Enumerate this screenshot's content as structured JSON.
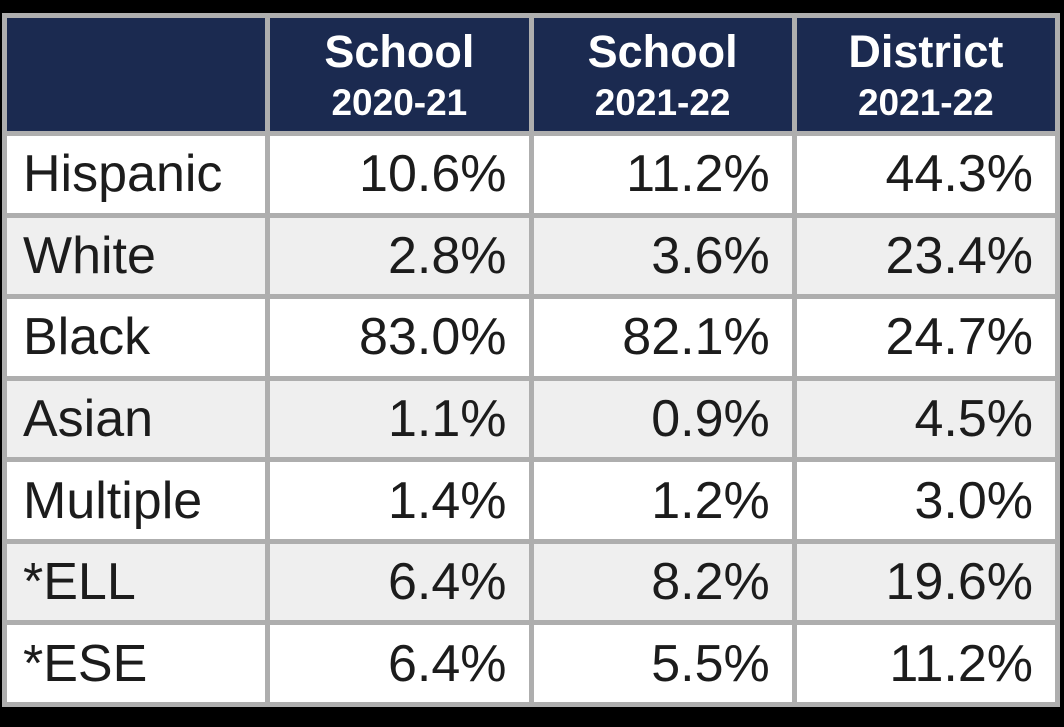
{
  "table": {
    "corner": "",
    "columns": [
      {
        "title": "School",
        "sub": "2020-21"
      },
      {
        "title": "School",
        "sub": "2021-22"
      },
      {
        "title": "District",
        "sub": "2021-22"
      }
    ],
    "rows": [
      {
        "label": "Hispanic",
        "values": [
          "10.6%",
          "11.2%",
          "44.3%"
        ]
      },
      {
        "label": "White",
        "values": [
          "2.8%",
          "3.6%",
          "23.4%"
        ]
      },
      {
        "label": "Black",
        "values": [
          "83.0%",
          "82.1%",
          "24.7%"
        ]
      },
      {
        "label": "Asian",
        "values": [
          "1.1%",
          "0.9%",
          "4.5%"
        ]
      },
      {
        "label": "Multiple",
        "values": [
          "1.4%",
          "1.2%",
          "3.0%"
        ]
      },
      {
        "label": "*ELL",
        "values": [
          "6.4%",
          "8.2%",
          "19.6%"
        ]
      },
      {
        "label": "*ESE",
        "values": [
          "6.4%",
          "5.5%",
          "11.2%"
        ]
      }
    ]
  },
  "colors": {
    "header_bg": "#1b2a50",
    "header_text": "#ffffff",
    "grid_border": "#aeaeae",
    "row_bg": "#ffffff",
    "row_alt_bg": "#efefef",
    "body_text": "#1c1c1c",
    "canvas_bg": "#000000"
  },
  "chart_data": {
    "type": "table",
    "title": "School demographics percentages",
    "categories": [
      "Hispanic",
      "White",
      "Black",
      "Asian",
      "Multiple",
      "*ELL",
      "*ESE"
    ],
    "series": [
      {
        "name": "School 2020-21",
        "values": [
          10.6,
          2.8,
          83.0,
          1.1,
          1.4,
          6.4,
          6.4
        ]
      },
      {
        "name": "School 2021-22",
        "values": [
          11.2,
          3.6,
          82.1,
          0.9,
          1.2,
          8.2,
          5.5
        ]
      },
      {
        "name": "District 2021-22",
        "values": [
          44.3,
          23.4,
          24.7,
          4.5,
          3.0,
          19.6,
          11.2
        ]
      }
    ],
    "unit": "%"
  }
}
